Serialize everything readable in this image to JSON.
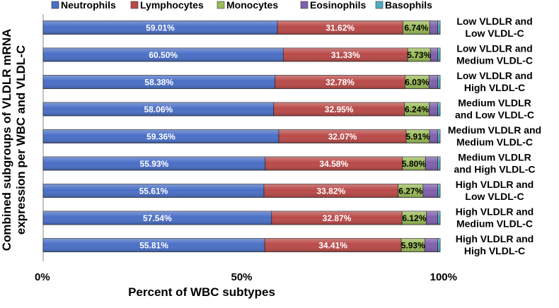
{
  "chart_data": {
    "type": "bar",
    "orientation": "horizontal",
    "stacked": "percent",
    "title": "",
    "xlabel": "Percent of WBC subtypes",
    "ylabel": "Combined subgroups of VLDLR mRNA expression per WBC and VLDL-C",
    "xlim": [
      0,
      100
    ],
    "xticks": [
      "0%",
      "50%",
      "100%"
    ],
    "legend_position": "top",
    "categories": [
      [
        "Low VLDLR  and",
        "Low VLDL-C"
      ],
      [
        "Low VLDLR  and",
        "Medium VLDL-C"
      ],
      [
        "Low VLDLR  and",
        "High VLDL-C"
      ],
      [
        "Medium VLDLR",
        "and Low VLDL-C"
      ],
      [
        "Medium VLDLR  and",
        "Medium VLDL-C"
      ],
      [
        "Medium VLDLR",
        "and High VLDL-C"
      ],
      [
        "High VLDLR  and",
        "Low VLDL-C"
      ],
      [
        "High VLDLR and",
        "Medium VLDL-C"
      ],
      [
        "High VLDLR and",
        "High VLDL-C"
      ]
    ],
    "series": [
      {
        "name": "Neutrophils",
        "color": "#4a6fc6",
        "label_style": "white",
        "values": [
          59.01,
          60.5,
          58.38,
          58.06,
          59.36,
          55.93,
          55.61,
          57.54,
          55.81
        ],
        "labels": [
          "59.01%",
          "60.50%",
          "58.38%",
          "58.06%",
          "59.36%",
          "55.93%",
          "55.61%",
          "57.54%",
          "55.81%"
        ]
      },
      {
        "name": "Lymphocytes",
        "color": "#b94a48",
        "label_style": "white",
        "values": [
          31.62,
          31.33,
          32.78,
          32.95,
          32.07,
          34.58,
          33.82,
          32.87,
          34.41
        ],
        "labels": [
          "31.62%",
          "31.33%",
          "32.78%",
          "32.95%",
          "32.07%",
          "34.58%",
          "33.82%",
          "32.87%",
          "34.41%"
        ]
      },
      {
        "name": "Monocytes",
        "color": "#9bbb59",
        "label_style": "dark",
        "values": [
          6.74,
          5.73,
          6.03,
          6.24,
          5.91,
          5.8,
          6.27,
          6.12,
          5.93
        ],
        "labels": [
          "6.74%",
          "5.73%",
          "6.03%",
          "6.24%",
          "5.91%",
          "5.80%",
          "6.27%",
          "6.12%",
          "5.93%"
        ]
      },
      {
        "name": "Eosinophils",
        "color": "#7f5fae",
        "label_style": "none",
        "values": [
          2.03,
          1.84,
          2.21,
          2.15,
          2.06,
          3.09,
          3.7,
          2.87,
          3.25
        ],
        "labels": []
      },
      {
        "name": "Basophils",
        "color": "#4bacc6",
        "label_style": "none",
        "values": [
          0.6,
          0.6,
          0.6,
          0.6,
          0.6,
          0.6,
          0.6,
          0.6,
          0.6
        ],
        "labels": []
      }
    ]
  }
}
